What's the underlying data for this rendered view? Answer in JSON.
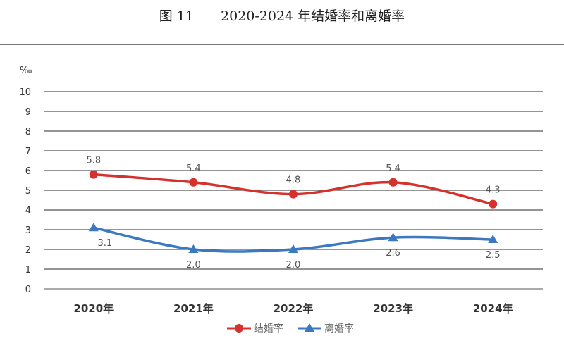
{
  "title": "图 11　　2020-2024 年结婚率和离婚率",
  "chart_data": {
    "type": "line",
    "title": "图 11　　2020-2024 年结婚率和离婚率",
    "ylabel": "‰",
    "xlabel": "",
    "categories": [
      "2020年",
      "2021年",
      "2022年",
      "2023年",
      "2024年"
    ],
    "ylim": [
      0,
      10
    ],
    "yticks": [
      0,
      1,
      2,
      3,
      4,
      5,
      6,
      7,
      8,
      9,
      10
    ],
    "grid": true,
    "legend": "bottom",
    "series": [
      {
        "name": "结婚率",
        "values": [
          5.8,
          5.4,
          4.8,
          5.4,
          4.3
        ],
        "labels": [
          "5.8",
          "5.4",
          "4.8",
          "5.4",
          "4.3"
        ],
        "color": "#d5322d",
        "marker": "circle"
      },
      {
        "name": "离婚率",
        "values": [
          3.1,
          2.0,
          2.0,
          2.6,
          2.5
        ],
        "labels": [
          "3.1",
          "2.0",
          "2.0",
          "2.6",
          "2.5"
        ],
        "color": "#3b78c0",
        "marker": "triangle"
      }
    ]
  }
}
